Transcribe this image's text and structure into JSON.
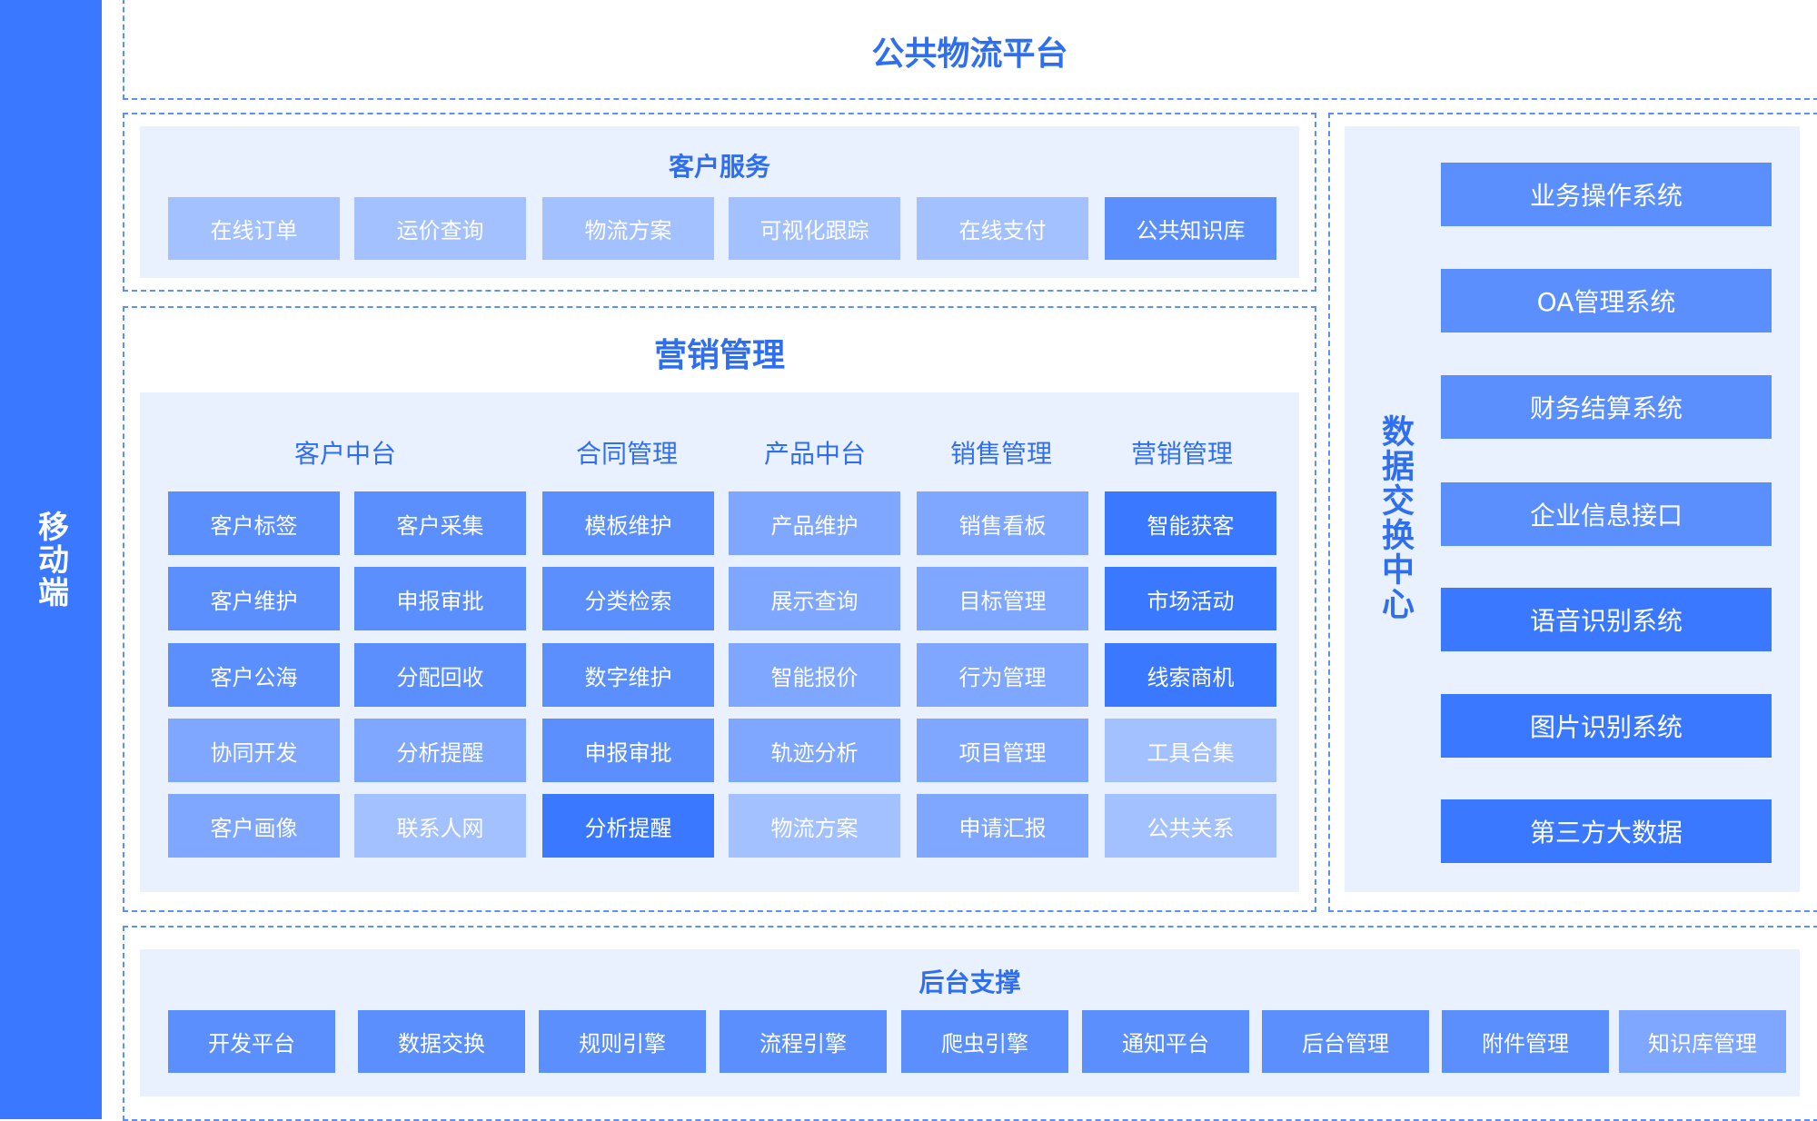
{
  "colors": {
    "l1": "#3a78ff",
    "l2": "#5c8ffe",
    "l3": "#7fa7ff",
    "l4": "#a3c0ff",
    "title": "#2f6fef",
    "panel_bg": "#e9f0fe"
  },
  "mobile": {
    "label": "移动端"
  },
  "platform": {
    "title": "公共物流平台"
  },
  "customer_service": {
    "title": "客户服务",
    "items": [
      {
        "label": "在线订单",
        "level": "l4"
      },
      {
        "label": "运价查询",
        "level": "l4"
      },
      {
        "label": "物流方案",
        "level": "l4"
      },
      {
        "label": "可视化跟踪",
        "level": "l4"
      },
      {
        "label": "在线支付",
        "level": "l4"
      },
      {
        "label": "公共知识库",
        "level": "l2"
      }
    ]
  },
  "marketing": {
    "title": "营销管理",
    "columns": [
      "客户中台",
      "合同管理",
      "产品中台",
      "销售管理",
      "营销管理"
    ],
    "rows": [
      [
        {
          "label": "客户标签",
          "level": "l2"
        },
        {
          "label": "客户采集",
          "level": "l2"
        },
        {
          "label": "模板维护",
          "level": "l2"
        },
        {
          "label": "产品维护",
          "level": "l3"
        },
        {
          "label": "销售看板",
          "level": "l3"
        },
        {
          "label": "智能获客",
          "level": "l1"
        }
      ],
      [
        {
          "label": "客户维护",
          "level": "l2"
        },
        {
          "label": "申报审批",
          "level": "l2"
        },
        {
          "label": "分类检索",
          "level": "l2"
        },
        {
          "label": "展示查询",
          "level": "l3"
        },
        {
          "label": "目标管理",
          "level": "l3"
        },
        {
          "label": "市场活动",
          "level": "l1"
        }
      ],
      [
        {
          "label": "客户公海",
          "level": "l2"
        },
        {
          "label": "分配回收",
          "level": "l2"
        },
        {
          "label": "数字维护",
          "level": "l2"
        },
        {
          "label": "智能报价",
          "level": "l3"
        },
        {
          "label": "行为管理",
          "level": "l3"
        },
        {
          "label": "线索商机",
          "level": "l1"
        }
      ],
      [
        {
          "label": "协同开发",
          "level": "l3"
        },
        {
          "label": "分析提醒",
          "level": "l3"
        },
        {
          "label": "申报审批",
          "level": "l2"
        },
        {
          "label": "轨迹分析",
          "level": "l3"
        },
        {
          "label": "项目管理",
          "level": "l3"
        },
        {
          "label": "工具合集",
          "level": "l4"
        }
      ],
      [
        {
          "label": "客户画像",
          "level": "l3"
        },
        {
          "label": "联系人网",
          "level": "l4"
        },
        {
          "label": "分析提醒",
          "level": "l1"
        },
        {
          "label": "物流方案",
          "level": "l4"
        },
        {
          "label": "申请汇报",
          "level": "l3"
        },
        {
          "label": "公共关系",
          "level": "l4"
        }
      ]
    ]
  },
  "data_center": {
    "title": "数据交换中心",
    "items": [
      {
        "label": "业务操作系统",
        "level": "l2"
      },
      {
        "label": "OA管理系统",
        "level": "l2"
      },
      {
        "label": "财务结算系统",
        "level": "l2"
      },
      {
        "label": "企业信息接口",
        "level": "l2"
      },
      {
        "label": "语音识别系统",
        "level": "l1"
      },
      {
        "label": "图片识别系统",
        "level": "l1"
      },
      {
        "label": "第三方大数据",
        "level": "l1"
      }
    ]
  },
  "backend": {
    "title": "后台支撑",
    "items": [
      {
        "label": "开发平台",
        "level": "l2"
      },
      {
        "label": "数据交换",
        "level": "l2"
      },
      {
        "label": "规则引擎",
        "level": "l2"
      },
      {
        "label": "流程引擎",
        "level": "l2"
      },
      {
        "label": "爬虫引擎",
        "level": "l2"
      },
      {
        "label": "通知平台",
        "level": "l2"
      },
      {
        "label": "后台管理",
        "level": "l2"
      },
      {
        "label": "附件管理",
        "level": "l2"
      },
      {
        "label": "知识库管理",
        "level": "l3"
      }
    ]
  }
}
